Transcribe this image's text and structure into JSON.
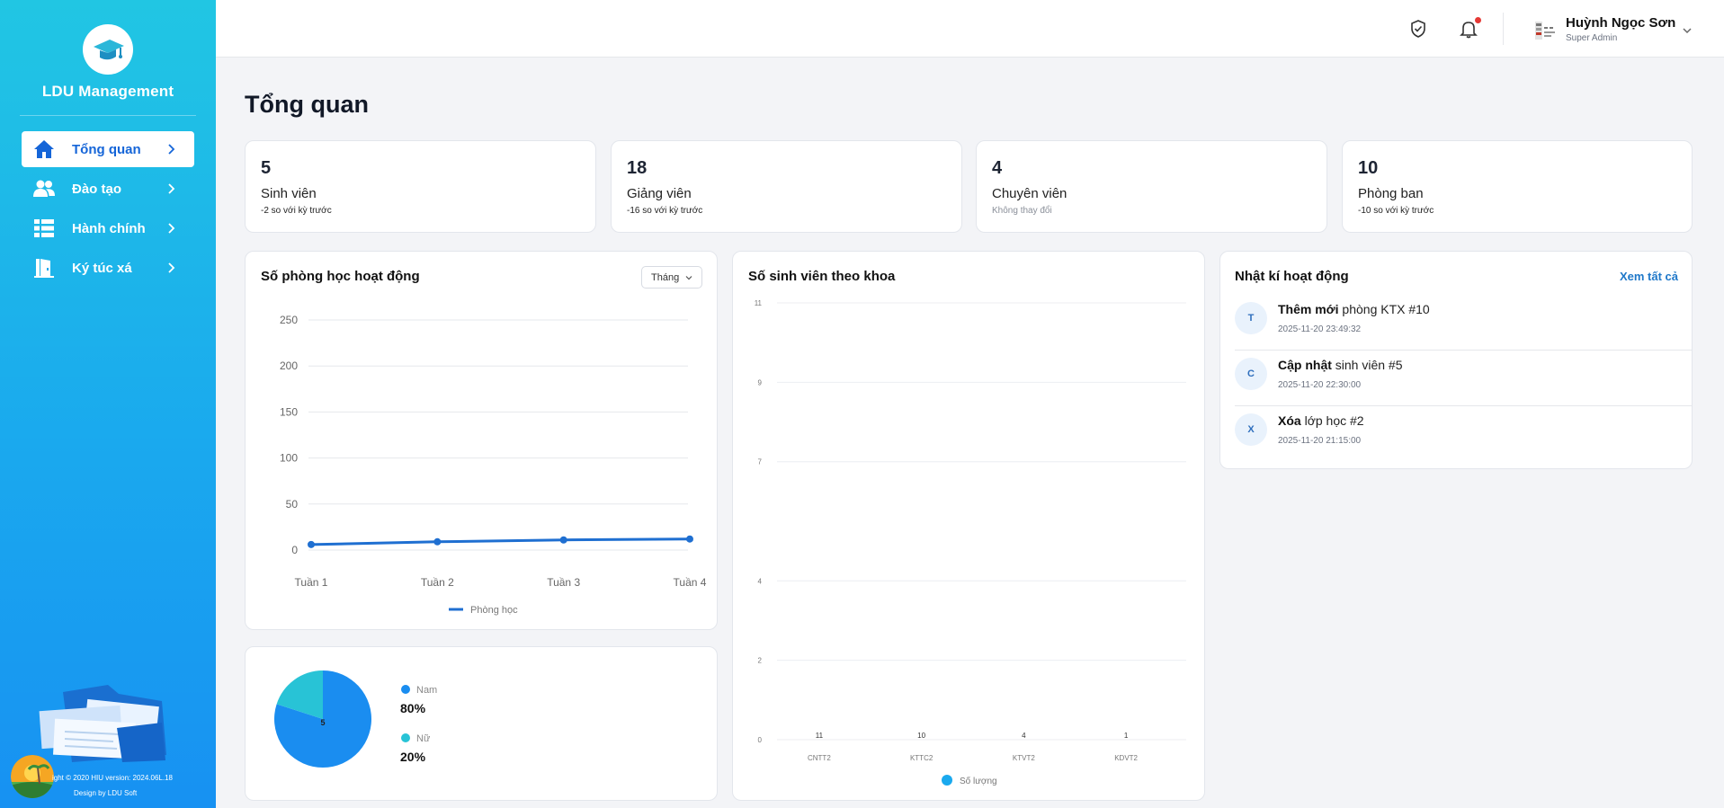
{
  "sidebar": {
    "brand": "LDU Management",
    "items": [
      {
        "label": "Tổng quan",
        "icon": "home-icon",
        "active": true
      },
      {
        "label": "Đào tạo",
        "icon": "users-icon",
        "active": false
      },
      {
        "label": "Hành chính",
        "icon": "list-icon",
        "active": false
      },
      {
        "label": "Ký túc xá",
        "icon": "door-icon",
        "active": false
      }
    ],
    "footer_line1": "ight © 2020 HIU version: 2024.06L.18",
    "footer_line2": "Design by LDU Soft"
  },
  "header": {
    "user_name": "Huỳnh Ngọc Sơn",
    "user_role": "Super Admin"
  },
  "page_title": "Tổng quan",
  "stats": [
    {
      "value": "5",
      "label": "Sinh viên",
      "delta": "-2 so với kỳ trước"
    },
    {
      "value": "18",
      "label": "Giảng viên",
      "delta": "-16 so với kỳ trước"
    },
    {
      "value": "4",
      "label": "Chuyên viên",
      "delta": "Không thay đổi"
    },
    {
      "value": "10",
      "label": "Phòng ban",
      "delta": "-10 so với kỳ trước"
    }
  ],
  "rooms_card": {
    "title": "Số phòng học hoạt động",
    "period": "Tháng"
  },
  "faculty_card": {
    "title": "Số sinh viên theo khoa"
  },
  "activity": {
    "title": "Nhật kí hoạt động",
    "see_all": "Xem tất cả",
    "items": [
      {
        "avatar": "T",
        "action": "Thêm mới",
        "object": "phòng KTX #10",
        "time": "2025-11-20 23:49:32"
      },
      {
        "avatar": "C",
        "action": "Cập nhật",
        "object": "sinh viên #5",
        "time": "2025-11-20 22:30:00"
      },
      {
        "avatar": "X",
        "action": "Xóa",
        "object": "lớp học #2",
        "time": "2025-11-20 21:15:00"
      }
    ]
  },
  "gender": {
    "items": [
      {
        "label": "Nam",
        "percent": "80%"
      },
      {
        "label": "Nữ",
        "percent": "20%"
      }
    ]
  },
  "colors": {
    "accent": "#1565d8",
    "line": "#1f6fd1",
    "pie_male": "#1a8df0",
    "pie_female": "#28c3d6",
    "bar": "#1aa9ee"
  },
  "chart_data": [
    {
      "type": "line",
      "x": [
        "Tuần 1",
        "Tuần 2",
        "Tuần 3",
        "Tuần 4"
      ],
      "series": [
        {
          "name": "Phòng học",
          "values": [
            6,
            9,
            11,
            12
          ]
        }
      ],
      "ylim": [
        0,
        250
      ],
      "yticks": [
        0,
        50,
        100,
        150,
        200,
        250
      ],
      "legend": "bottom",
      "grid": true
    },
    {
      "type": "bar",
      "categories": [
        "CNTT2",
        "KTTC2",
        "KTVT2",
        "KDVT2"
      ],
      "series": [
        {
          "name": "Số lượng",
          "values": [
            11,
            10,
            4,
            1
          ]
        }
      ],
      "ylim": [
        0,
        11
      ],
      "yticks": [
        0,
        2,
        4,
        7,
        9,
        11
      ],
      "data_labels": [
        "11",
        "10",
        "4",
        "1"
      ],
      "legend": "bottom",
      "grid": true
    },
    {
      "type": "pie",
      "categories": [
        "Nam",
        "Nữ"
      ],
      "values": [
        80,
        20
      ],
      "center_label": "5",
      "legend": "right"
    }
  ]
}
